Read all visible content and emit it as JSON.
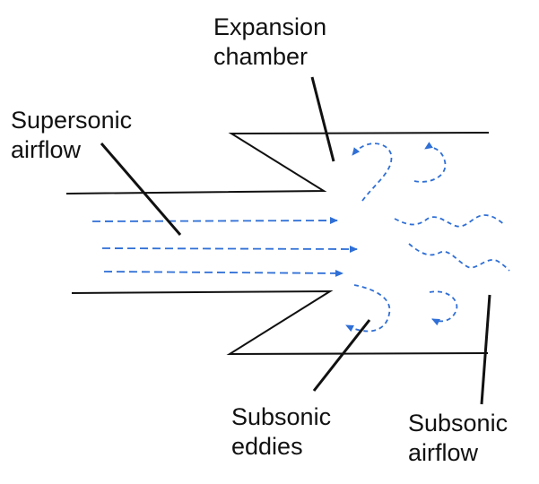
{
  "labels": {
    "expansion_chamber": [
      "Expansion",
      "chamber"
    ],
    "supersonic_airflow": [
      "Supersonic",
      "airflow"
    ],
    "subsonic_eddies": [
      "Subsonic",
      "eddies"
    ],
    "subsonic_airflow": [
      "Subsonic",
      "airflow"
    ]
  },
  "colors": {
    "wall": "#111111",
    "flow": "#2f6fd6",
    "text": "#111111"
  }
}
